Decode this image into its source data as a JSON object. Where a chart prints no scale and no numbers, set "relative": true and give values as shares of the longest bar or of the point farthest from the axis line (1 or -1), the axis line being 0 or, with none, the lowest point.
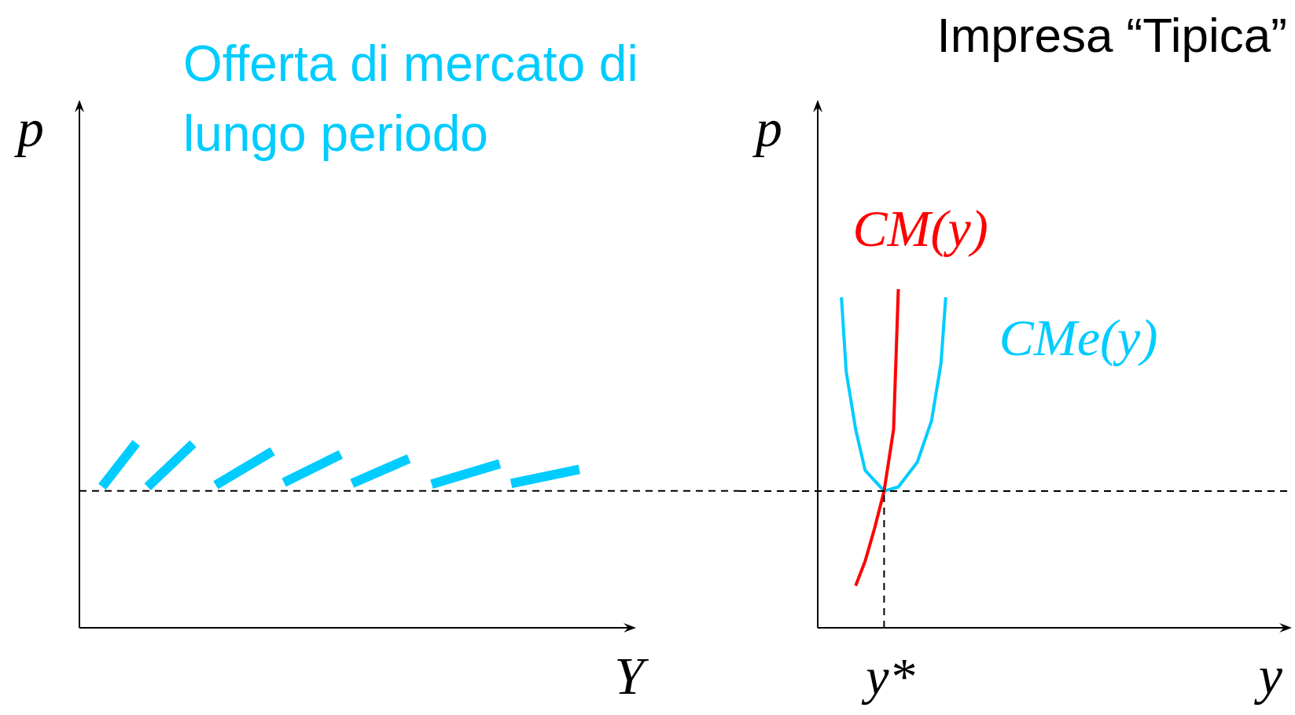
{
  "chart_data": [
    {
      "type": "line",
      "relative": true,
      "xlabel": "Y",
      "ylabel": "p",
      "tick_labels": false,
      "marker": "none",
      "categories": [
        null,
        null,
        null,
        null,
        null,
        null,
        null,
        null,
        null,
        null,
        null,
        null,
        null,
        null,
        null,
        null,
        null,
        null,
        null,
        null,
        null,
        null,
        null,
        null,
        null,
        null,
        null,
        null,
        null,
        null,
        null,
        null,
        null,
        null,
        null,
        null,
        null,
        null,
        null,
        null,
        null,
        null,
        null,
        null,
        null,
        null,
        null,
        null,
        null,
        null
      ],
      "ref_lines": [
        {
          "axis": "y",
          "value": 0.741,
          "line_style": "dashed",
          "color": "#000000"
        }
      ],
      "series": [
        {
          "name": "Offerta di mercato di lungo periodo",
          "color": "#00ccff",
          "values": [
            null,
            null,
            0.763,
            null,
            null,
            1.0,
            null,
            null,
            null,
            null,
            null,
            null,
            null,
            null,
            null,
            null,
            null,
            null,
            null,
            null,
            null,
            null,
            null,
            null,
            null,
            null,
            null,
            null,
            null,
            null,
            null,
            null,
            null,
            null,
            null,
            null,
            null,
            null,
            null,
            null,
            null,
            null,
            null,
            null,
            null,
            null,
            null,
            null,
            null,
            null
          ]
        },
        {
          "color": "#00ccff",
          "values": [
            null,
            null,
            null,
            null,
            null,
            null,
            0.763,
            null,
            null,
            null,
            0.996,
            null,
            null,
            null,
            null,
            null,
            null,
            null,
            null,
            null,
            null,
            null,
            null,
            null,
            null,
            null,
            null,
            null,
            null,
            null,
            null,
            null,
            null,
            null,
            null,
            null,
            null,
            null,
            null,
            null,
            null,
            null,
            null,
            null,
            null,
            null,
            null,
            null,
            null,
            null
          ]
        },
        {
          "color": "#00ccff",
          "values": [
            null,
            null,
            null,
            null,
            null,
            null,
            null,
            null,
            null,
            null,
            null,
            null,
            0.772,
            null,
            null,
            null,
            null,
            0.955,
            null,
            null,
            null,
            null,
            null,
            null,
            null,
            null,
            null,
            null,
            null,
            null,
            null,
            null,
            null,
            null,
            null,
            null,
            null,
            null,
            null,
            null,
            null,
            null,
            null,
            null,
            null,
            null,
            null,
            null,
            null,
            null
          ]
        },
        {
          "color": "#00ccff",
          "values": [
            null,
            null,
            null,
            null,
            null,
            null,
            null,
            null,
            null,
            null,
            null,
            null,
            null,
            null,
            null,
            null,
            null,
            null,
            0.786,
            null,
            null,
            null,
            null,
            0.938,
            null,
            null,
            null,
            null,
            null,
            null,
            null,
            null,
            null,
            null,
            null,
            null,
            null,
            null,
            null,
            null,
            null,
            null,
            null,
            null,
            null,
            null,
            null,
            null,
            null,
            null
          ]
        },
        {
          "color": "#00ccff",
          "values": [
            null,
            null,
            null,
            null,
            null,
            null,
            null,
            null,
            null,
            null,
            null,
            null,
            null,
            null,
            null,
            null,
            null,
            null,
            null,
            null,
            null,
            null,
            null,
            null,
            0.781,
            null,
            null,
            null,
            null,
            0.915,
            null,
            null,
            null,
            null,
            null,
            null,
            null,
            null,
            null,
            null,
            null,
            null,
            null,
            null,
            null,
            null,
            null,
            null,
            null,
            null
          ]
        },
        {
          "color": "#00ccff",
          "values": [
            null,
            null,
            null,
            null,
            null,
            null,
            null,
            null,
            null,
            null,
            null,
            null,
            null,
            null,
            null,
            null,
            null,
            null,
            null,
            null,
            null,
            null,
            null,
            null,
            null,
            null,
            null,
            null,
            null,
            null,
            null,
            0.777,
            null,
            null,
            null,
            null,
            null,
            0.888,
            null,
            null,
            null,
            null,
            null,
            null,
            null,
            null,
            null,
            null,
            null,
            null
          ]
        },
        {
          "color": "#00ccff",
          "values": [
            null,
            null,
            null,
            null,
            null,
            null,
            null,
            null,
            null,
            null,
            null,
            null,
            null,
            null,
            null,
            null,
            null,
            null,
            null,
            null,
            null,
            null,
            null,
            null,
            null,
            null,
            null,
            null,
            null,
            null,
            null,
            null,
            null,
            null,
            null,
            null,
            null,
            null,
            0.781,
            null,
            null,
            null,
            null,
            null,
            0.857,
            null,
            null,
            null,
            null,
            null
          ]
        }
      ]
    },
    {
      "type": "line",
      "relative": true,
      "title": "Impresa “Tipica”",
      "xlabel": "y",
      "ylabel": "p",
      "tick_labels": false,
      "marker": "none",
      "annotations": [
        "y*"
      ],
      "categories": [
        null,
        null,
        null,
        null,
        null,
        null,
        null,
        null,
        null,
        null,
        null,
        null,
        null,
        null,
        null,
        null,
        null,
        null,
        null,
        null,
        null,
        null,
        null,
        null,
        null,
        null,
        null,
        null,
        null,
        null,
        null,
        null,
        null,
        null,
        null,
        null,
        null,
        null,
        null,
        null,
        null,
        null,
        null,
        null,
        null,
        null,
        null,
        null,
        null,
        null,
        null,
        null,
        null,
        null,
        null,
        null,
        null,
        null,
        null,
        null,
        null,
        null,
        null,
        null,
        null,
        null,
        null,
        null,
        null,
        null,
        null,
        null,
        null,
        null,
        null,
        null,
        null,
        null,
        null,
        null,
        null,
        null,
        null,
        null,
        null,
        null,
        null,
        null,
        null,
        null,
        null,
        null,
        null,
        null,
        null,
        null,
        null,
        null,
        null,
        null,
        null
      ],
      "ref_lines": [
        {
          "axis": "y",
          "value": 0.404,
          "line_style": "dashed",
          "color": "#000000"
        }
      ],
      "series": [
        {
          "name": "CM(y)",
          "color": "#ff0000",
          "values": [
            null,
            null,
            null,
            null,
            null,
            null,
            null,
            null,
            0.124,
            null,
            0.197,
            null,
            0.294,
            null,
            0.404,
            null,
            0.586,
            1.0,
            null,
            null,
            null,
            null,
            null,
            null,
            null,
            null,
            null,
            null,
            null,
            null,
            null,
            null,
            null,
            null,
            null,
            null,
            null,
            null,
            null,
            null,
            null,
            null,
            null,
            null,
            null,
            null,
            null,
            null,
            null,
            null,
            null,
            null,
            null,
            null,
            null,
            null,
            null,
            null,
            null,
            null,
            null,
            null,
            null,
            null,
            null,
            null,
            null,
            null,
            null,
            null,
            null,
            null,
            null,
            null,
            null,
            null,
            null,
            null,
            null,
            null,
            null,
            null,
            null,
            null,
            null,
            null,
            null,
            null,
            null,
            null,
            null,
            null,
            null,
            null,
            null,
            null,
            null,
            null,
            null,
            null,
            null
          ]
        },
        {
          "name": "CMe(y)",
          "color": "#00ccff",
          "values": [
            null,
            null,
            null,
            null,
            null,
            0.976,
            0.757,
            null,
            0.586,
            null,
            0.465,
            null,
            null,
            null,
            0.404,
            null,
            null,
            0.416,
            null,
            null,
            null,
            0.489,
            null,
            null,
            0.611,
            null,
            0.781,
            0.976,
            null,
            null,
            null,
            null,
            null,
            null,
            null,
            null,
            null,
            null,
            null,
            null,
            null,
            null,
            null,
            null,
            null,
            null,
            null,
            null,
            null,
            null,
            null,
            null,
            null,
            null,
            null,
            null,
            null,
            null,
            null,
            null,
            null,
            null,
            null,
            null,
            null,
            null,
            null,
            null,
            null,
            null,
            null,
            null,
            null,
            null,
            null,
            null,
            null,
            null,
            null,
            null,
            null,
            null,
            null,
            null,
            null,
            null,
            null,
            null,
            null,
            null,
            null,
            null,
            null,
            null,
            null,
            null,
            null,
            null,
            null,
            null,
            null
          ]
        }
      ]
    }
  ]
}
